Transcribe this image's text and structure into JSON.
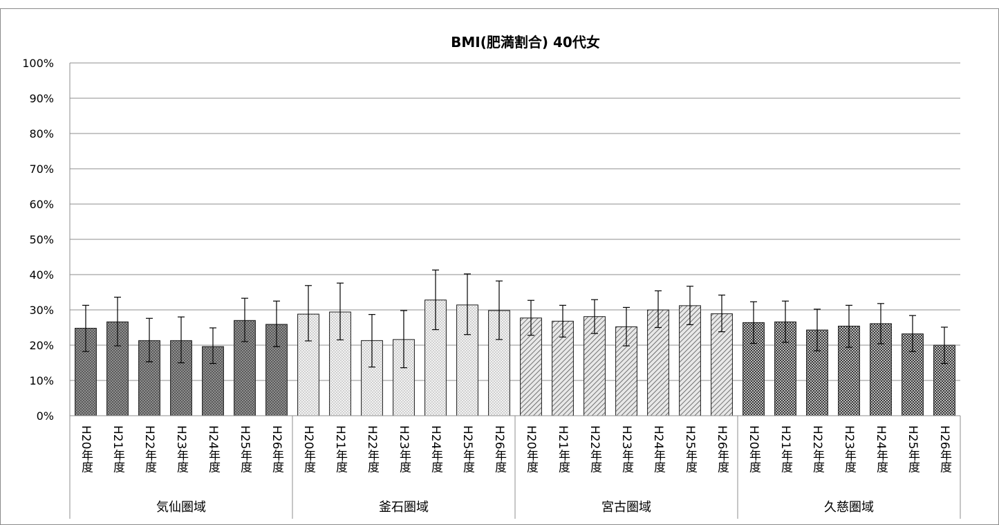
{
  "chart_data": {
    "type": "bar",
    "title": "BMI(肥満割合) 40代女",
    "xlabel": "",
    "ylabel": "",
    "ylim": [
      0,
      100
    ],
    "y_ticks": [
      "0%",
      "10%",
      "20%",
      "30%",
      "40%",
      "50%",
      "60%",
      "70%",
      "80%",
      "90%",
      "100%"
    ],
    "grid": true,
    "legend": "none",
    "groups": [
      {
        "name": "気仙圏域",
        "pattern": "dots-dark",
        "categories": [
          "H20年度",
          "H21年度",
          "H22年度",
          "H23年度",
          "H24年度",
          "H25年度",
          "H26年度"
        ],
        "values": [
          24.8,
          26.6,
          21.3,
          21.3,
          19.6,
          27.0,
          25.9
        ],
        "error_low": [
          18.2,
          19.8,
          15.3,
          15.0,
          14.8,
          21.0,
          19.6
        ],
        "error_high": [
          31.3,
          33.6,
          27.6,
          28.0,
          24.9,
          33.3,
          32.5
        ]
      },
      {
        "name": "釜石圏域",
        "pattern": "dots-light",
        "categories": [
          "H20年度",
          "H21年度",
          "H22年度",
          "H23年度",
          "H24年度",
          "H25年度",
          "H26年度"
        ],
        "values": [
          28.8,
          29.4,
          21.3,
          21.6,
          32.8,
          31.4,
          29.8
        ],
        "error_low": [
          21.2,
          21.5,
          13.8,
          13.6,
          24.4,
          23.0,
          21.6
        ],
        "error_high": [
          36.9,
          37.6,
          28.7,
          29.8,
          41.3,
          40.2,
          38.2
        ]
      },
      {
        "name": "宮古圏域",
        "pattern": "diagonal",
        "categories": [
          "H20年度",
          "H21年度",
          "H22年度",
          "H23年度",
          "H24年度",
          "H25年度",
          "H26年度"
        ],
        "values": [
          27.7,
          26.8,
          28.1,
          25.2,
          30.0,
          31.2,
          28.9
        ],
        "error_low": [
          22.8,
          22.3,
          23.3,
          19.8,
          25.0,
          25.8,
          23.8
        ],
        "error_high": [
          32.7,
          31.3,
          32.9,
          30.7,
          35.4,
          36.7,
          34.2
        ]
      },
      {
        "name": "久慈圏域",
        "pattern": "checker",
        "categories": [
          "H20年度",
          "H21年度",
          "H22年度",
          "H23年度",
          "H24年度",
          "H25年度",
          "H26年度"
        ],
        "values": [
          26.4,
          26.6,
          24.3,
          25.4,
          26.1,
          23.2,
          20.0
        ],
        "error_low": [
          20.5,
          20.8,
          18.4,
          19.4,
          20.4,
          18.2,
          14.8
        ],
        "error_high": [
          32.3,
          32.5,
          30.2,
          31.3,
          31.8,
          28.4,
          25.1
        ]
      }
    ]
  }
}
